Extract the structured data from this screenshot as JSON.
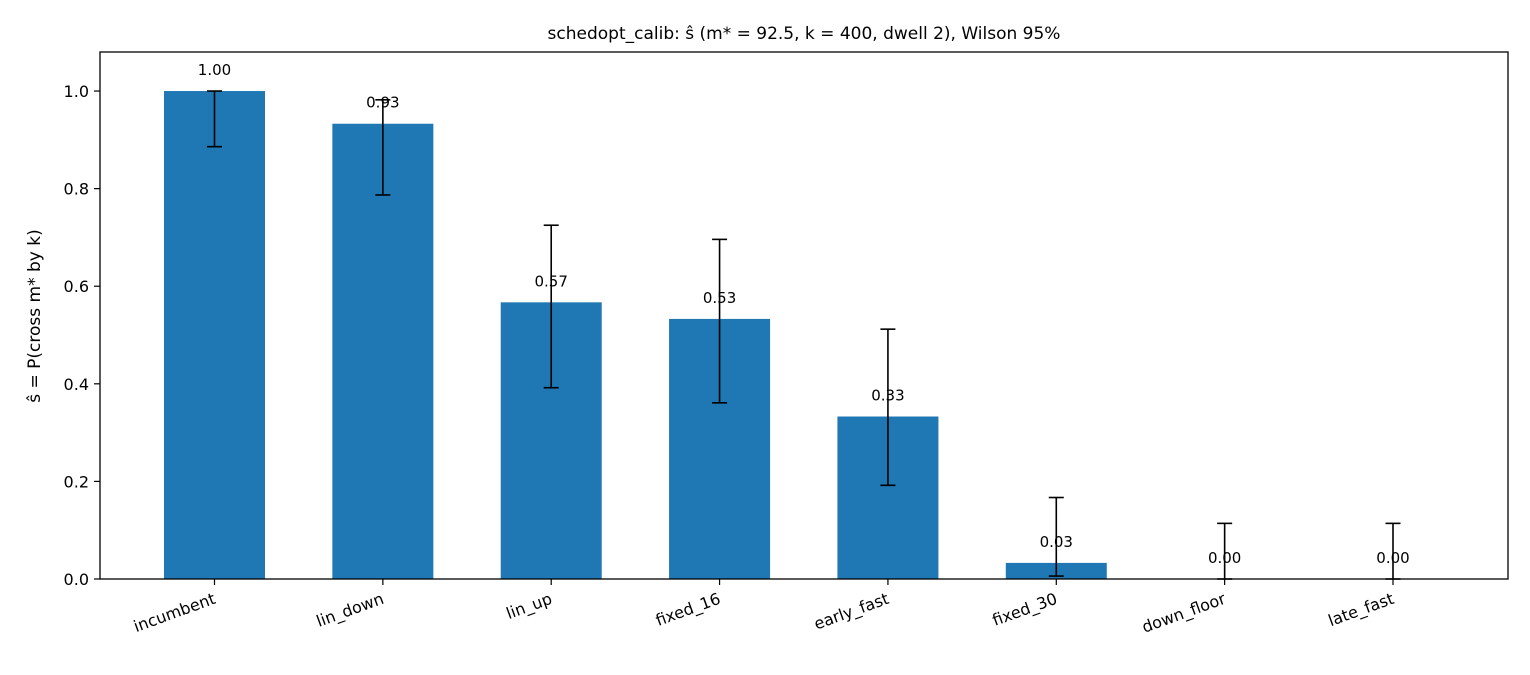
{
  "chart_data": {
    "type": "bar",
    "title": "schedopt_calib: ŝ (m* = 92.5, k = 400, dwell 2), Wilson 95%",
    "xlabel": "",
    "ylabel": "ŝ = P(cross m* by k)",
    "categories": [
      "incumbent",
      "lin_down",
      "lin_up",
      "fixed_16",
      "early_fast",
      "fixed_30",
      "down_floor",
      "late_fast"
    ],
    "values": [
      1.0,
      0.933,
      0.567,
      0.533,
      0.333,
      0.033,
      0.0,
      0.0
    ],
    "data_labels": [
      "1.00",
      "0.93",
      "0.57",
      "0.53",
      "0.33",
      "0.03",
      "0.00",
      "0.00"
    ],
    "error_low": [
      0.886,
      0.787,
      0.392,
      0.361,
      0.192,
      0.006,
      0.0,
      0.0
    ],
    "error_high": [
      1.0,
      0.982,
      0.725,
      0.696,
      0.512,
      0.167,
      0.114,
      0.114
    ],
    "ylim": [
      0,
      1.08
    ],
    "yticks": [
      0.0,
      0.2,
      0.4,
      0.6,
      0.8,
      1.0
    ],
    "ytick_labels": [
      "0.0",
      "0.2",
      "0.4",
      "0.6",
      "0.8",
      "1.0"
    ],
    "grid": false,
    "bar_color": "#1f77b4",
    "errorbar_color": "#000000"
  }
}
